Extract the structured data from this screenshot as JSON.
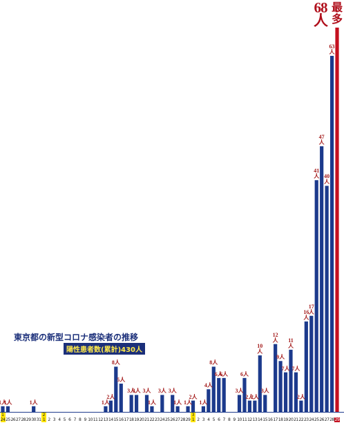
{
  "chart_data": {
    "type": "bar",
    "title": "東京都の新型コロナ感染者の推移",
    "subtitle": "陽性患者数(累計)430人",
    "annotation": "最多",
    "categories": [
      "24",
      "25",
      "26",
      "27",
      "28",
      "29",
      "30",
      "31",
      "1",
      "2",
      "3",
      "4",
      "5",
      "6",
      "7",
      "8",
      "9",
      "10",
      "11",
      "12",
      "13",
      "14",
      "15",
      "16",
      "17",
      "18",
      "19",
      "20",
      "21",
      "22",
      "23",
      "24",
      "25",
      "26",
      "27",
      "28",
      "29",
      "1",
      "2",
      "3",
      "4",
      "5",
      "6",
      "7",
      "8",
      "9",
      "10",
      "11",
      "12",
      "13",
      "14",
      "15",
      "16",
      "17",
      "18",
      "19",
      "20",
      "21",
      "22",
      "23",
      "24",
      "25",
      "26",
      "27",
      "28",
      "29"
    ],
    "month_starts": [
      {
        "category": 0,
        "label": "1"
      },
      {
        "category": 8,
        "label": "2"
      },
      {
        "category": 37,
        "label": "3"
      }
    ],
    "values": [
      1,
      1,
      0,
      0,
      0,
      0,
      1,
      0,
      0,
      0,
      0,
      0,
      0,
      0,
      0,
      0,
      0,
      0,
      0,
      0,
      1,
      2,
      8,
      5,
      0,
      3,
      3,
      0,
      3,
      1,
      0,
      3,
      0,
      3,
      1,
      0,
      1,
      2,
      0,
      1,
      4,
      8,
      6,
      6,
      0,
      0,
      3,
      6,
      2,
      2,
      10,
      3,
      0,
      12,
      9,
      7,
      11,
      7,
      2,
      16,
      17,
      41,
      47,
      40,
      63,
      68
    ],
    "value_labels": [
      "1人",
      "1人",
      null,
      null,
      null,
      null,
      "1人",
      null,
      null,
      null,
      null,
      null,
      null,
      null,
      null,
      null,
      null,
      null,
      null,
      null,
      "1人",
      "2人",
      "8人",
      "5人",
      null,
      "3人",
      "3人",
      null,
      "3人",
      "1人",
      null,
      "3人",
      null,
      "3人",
      "1人",
      null,
      "1人",
      "2人",
      null,
      "1人",
      "4人",
      "8人",
      "6人",
      "6人",
      null,
      null,
      "3人",
      "6人",
      "2人",
      "2人",
      "10人",
      "3人",
      null,
      "12人",
      "9人",
      "7人",
      "11人",
      "7人",
      "2人",
      "16人",
      "17人",
      "41人",
      "47人",
      "40人",
      "63人",
      "68人"
    ],
    "color": "#1c3a8c",
    "highlight_color": "#c4101f",
    "month_color": "#ffe600"
  }
}
